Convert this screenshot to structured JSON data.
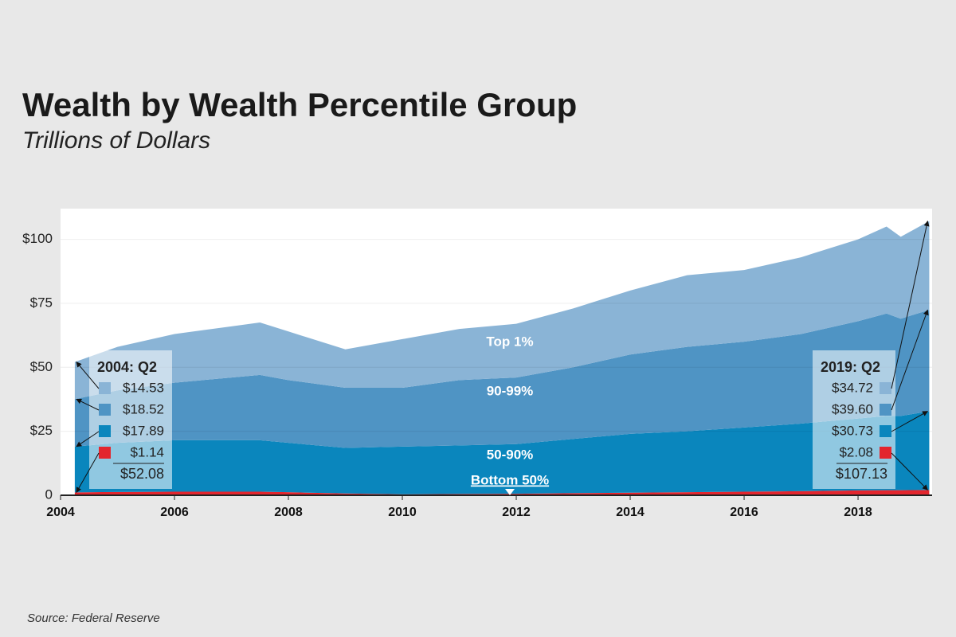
{
  "chart_data": {
    "type": "stacked-area",
    "title": "Wealth by Wealth Percentile Group",
    "subtitle": "Trillions of Dollars",
    "source": "Source: Federal Reserve",
    "x": [
      2004.25,
      2005,
      2006,
      2007,
      2007.5,
      2008,
      2009,
      2010,
      2011,
      2012,
      2013,
      2014,
      2015,
      2016,
      2017,
      2018,
      2018.5,
      2018.75,
      2019.25
    ],
    "xlim": [
      2004,
      2019.3
    ],
    "xticks": [
      2004,
      2006,
      2008,
      2010,
      2012,
      2014,
      2016,
      2018
    ],
    "ylim": [
      0,
      112
    ],
    "yticks": [
      0,
      {
        "value": 25,
        "label": "$25"
      },
      {
        "value": 50,
        "label": "$50"
      },
      {
        "value": 75,
        "label": "$75"
      },
      {
        "value": 100,
        "label": "$100"
      }
    ],
    "grid": true,
    "series": [
      {
        "name": "Bottom 50%",
        "color": "#e3262e",
        "values": [
          1.14,
          1.3,
          1.4,
          1.4,
          1.4,
          1.2,
          0.7,
          0.4,
          0.5,
          0.6,
          0.8,
          1.0,
          1.2,
          1.4,
          1.6,
          1.9,
          2.0,
          2.0,
          2.08
        ],
        "value_labels": [
          "$1.14",
          null,
          null,
          null,
          null,
          null,
          null,
          null,
          null,
          null,
          null,
          null,
          null,
          null,
          null,
          null,
          null,
          null,
          "$2.08"
        ]
      },
      {
        "name": "50-90%",
        "color": "#0a86bd",
        "values": [
          17.89,
          19.2,
          20.1,
          20.1,
          20.1,
          19.3,
          17.8,
          18.6,
          19.0,
          19.4,
          21.2,
          23.0,
          23.8,
          25.1,
          26.4,
          28.1,
          29.0,
          29.0,
          30.73
        ],
        "value_labels": [
          "$17.89",
          null,
          null,
          null,
          null,
          null,
          null,
          null,
          null,
          null,
          null,
          null,
          null,
          null,
          null,
          null,
          null,
          null,
          "$30.73"
        ]
      },
      {
        "name": "90-99%",
        "color": "#4f94c4",
        "values": [
          18.52,
          20.5,
          22.5,
          24.5,
          25.5,
          24.5,
          23.5,
          23,
          25.5,
          26,
          28,
          31,
          33,
          33.5,
          35,
          38,
          40,
          38,
          39.6
        ],
        "value_labels": [
          "$18.52",
          null,
          null,
          null,
          null,
          null,
          null,
          null,
          null,
          null,
          null,
          null,
          null,
          null,
          null,
          null,
          null,
          null,
          "$39.60"
        ]
      },
      {
        "name": "Top 1%",
        "color": "#8ab4d6",
        "values": [
          14.53,
          17,
          19,
          20,
          20.5,
          19,
          15,
          19,
          20,
          21,
          23,
          25,
          28,
          28,
          30,
          32,
          34,
          32,
          34.72
        ],
        "value_labels": [
          "$14.53",
          null,
          null,
          null,
          null,
          null,
          null,
          null,
          null,
          null,
          null,
          null,
          null,
          null,
          null,
          null,
          null,
          null,
          "$34.72"
        ]
      }
    ],
    "annotations": [
      {
        "text": "2004: Q2",
        "total": 52.08,
        "total_label": "$52.08"
      },
      {
        "text": "2019: Q2",
        "total": 107.13,
        "total_label": "$107.13"
      }
    ]
  }
}
